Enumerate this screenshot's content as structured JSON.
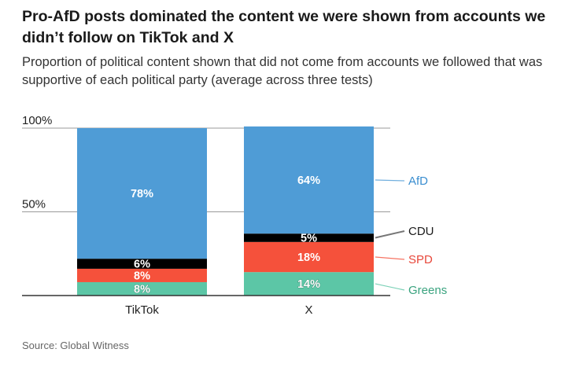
{
  "title": "Pro-AfD posts dominated the content we were shown from accounts we didn’t follow on TikTok and X",
  "subtitle": "Proportion of political content shown that did not come from accounts we followed that was supportive of each political party (average across three tests)",
  "source": "Source: Global Witness",
  "chart_data": {
    "type": "bar",
    "stacked": true,
    "categories": [
      "TikTok",
      "X"
    ],
    "series": [
      {
        "name": "Greens",
        "values": [
          8,
          14
        ],
        "labels": [
          "8%",
          "14%"
        ],
        "color": "#5cc6a6",
        "label_color": "#ffffff",
        "legend_color": "#3aa37f"
      },
      {
        "name": "SPD",
        "values": [
          8,
          18
        ],
        "labels": [
          "8%",
          "18%"
        ],
        "color": "#f5513b",
        "label_color": "#ffffff",
        "legend_color": "#e8473a"
      },
      {
        "name": "CDU",
        "values": [
          6,
          5
        ],
        "labels": [
          "6%",
          "5%"
        ],
        "color": "#000000",
        "label_color": "#ffffff",
        "legend_color": "#1a1a1a"
      },
      {
        "name": "AfD",
        "values": [
          78,
          64
        ],
        "labels": [
          "78%",
          "64%"
        ],
        "color": "#4f9cd6",
        "label_color": "#ffffff",
        "legend_color": "#3b8ed0"
      }
    ],
    "ylim": [
      0,
      100
    ],
    "yticks": [
      {
        "value": 50,
        "label": "50%"
      },
      {
        "value": 100,
        "label": "100%"
      }
    ],
    "grid": true,
    "legend": "right"
  }
}
